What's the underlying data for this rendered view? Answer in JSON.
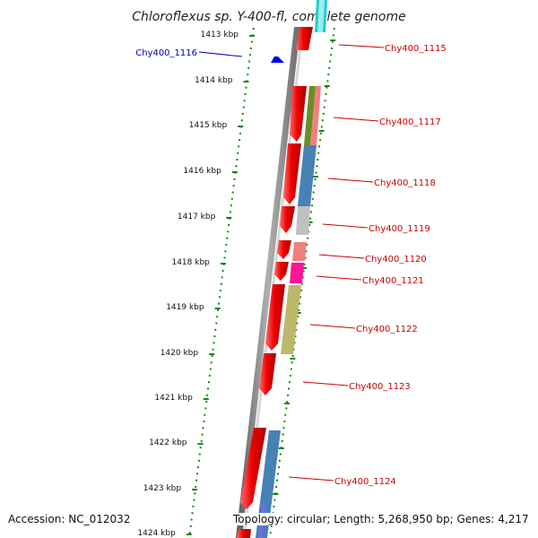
{
  "title": "Chloroflexus sp. Y-400-fl, complete genome",
  "footer": {
    "accession": "Accession: NC_012032",
    "topology": "Topology: circular; Length: 5,268,950 bp; Genes: 4,217"
  },
  "colors": {
    "ticks": "#118811",
    "forward_label": "#cc0000",
    "reverse_label": "#0000cc",
    "forward_gene": "#ee0000"
  },
  "kbp_ticks": [
    "1413 kbp",
    "1414 kbp",
    "1415 kbp",
    "1416 kbp",
    "1417 kbp",
    "1418 kbp",
    "1419 kbp",
    "1420 kbp",
    "1421 kbp",
    "1422 kbp",
    "1423 kbp",
    "1424 kbp"
  ],
  "gene_labels": [
    {
      "text": "Chy400_1115",
      "strand": "forward"
    },
    {
      "text": "Chy400_1116",
      "strand": "reverse"
    },
    {
      "text": "Chy400_1117",
      "strand": "forward"
    },
    {
      "text": "Chy400_1118",
      "strand": "forward"
    },
    {
      "text": "Chy400_1119",
      "strand": "forward"
    },
    {
      "text": "Chy400_1120",
      "strand": "forward"
    },
    {
      "text": "Chy400_1121",
      "strand": "forward"
    },
    {
      "text": "Chy400_1122",
      "strand": "forward"
    },
    {
      "text": "Chy400_1123",
      "strand": "forward"
    },
    {
      "text": "Chy400_1124",
      "strand": "forward"
    }
  ]
}
